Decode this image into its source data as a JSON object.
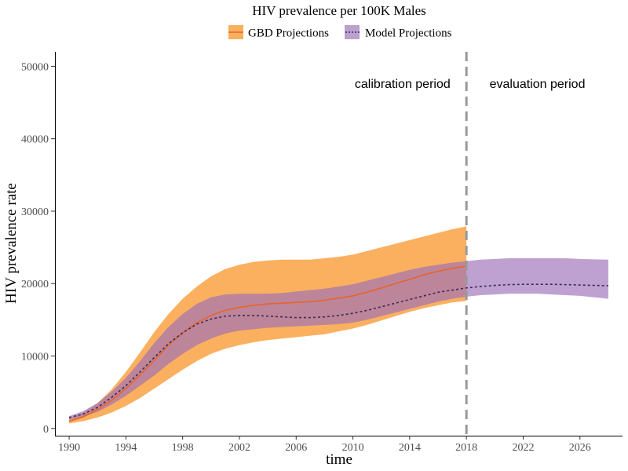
{
  "chart_data": {
    "type": "area",
    "title": "HIV prevalence per 100K Males",
    "xlabel": "time",
    "ylabel": "HIV prevalence rate",
    "xlim": [
      1989,
      2029
    ],
    "ylim": [
      -1000,
      52000
    ],
    "x_ticks": [
      1990,
      1994,
      1998,
      2002,
      2006,
      2010,
      2014,
      2018,
      2022,
      2026
    ],
    "y_ticks": [
      0,
      10000,
      20000,
      30000,
      40000,
      50000
    ],
    "grid": false,
    "legend_position": "top",
    "legend": [
      {
        "label": "GBD Projections",
        "color": "#f98e1d",
        "line_color": "#e8632b",
        "line_style": "solid"
      },
      {
        "label": "Model Projections",
        "color": "#9b6fb8",
        "line_color": "#3b2a5a",
        "line_style": "dotted"
      }
    ],
    "cutoff": {
      "x": 2018,
      "color": "#999999",
      "style": "dashed"
    },
    "annotations": [
      {
        "text": "calibration period",
        "x": 2013.5,
        "y": 47000
      },
      {
        "text": "evaluation period",
        "x": 2023,
        "y": 47000
      }
    ],
    "series": [
      {
        "name": "GBD Projections",
        "x": [
          1990,
          1991,
          1992,
          1993,
          1994,
          1995,
          1996,
          1997,
          1998,
          1999,
          2000,
          2001,
          2002,
          2003,
          2004,
          2005,
          2006,
          2007,
          2008,
          2009,
          2010,
          2011,
          2012,
          2013,
          2014,
          2015,
          2016,
          2017,
          2018
        ],
        "mean": [
          1000,
          1600,
          2600,
          3900,
          5500,
          7400,
          9400,
          11500,
          13200,
          14600,
          15600,
          16300,
          16700,
          17000,
          17200,
          17300,
          17400,
          17500,
          17700,
          18000,
          18300,
          18800,
          19400,
          20000,
          20600,
          21200,
          21700,
          22100,
          22400
        ],
        "lower": [
          700,
          1000,
          1500,
          2200,
          3100,
          4200,
          5500,
          6800,
          8100,
          9300,
          10300,
          11000,
          11500,
          11900,
          12200,
          12400,
          12600,
          12800,
          13000,
          13400,
          13800,
          14300,
          14900,
          15500,
          16100,
          16600,
          17000,
          17400,
          17600
        ],
        "upper": [
          1400,
          2200,
          3500,
          5400,
          7800,
          10500,
          13300,
          15800,
          17900,
          19600,
          21000,
          22000,
          22600,
          23000,
          23200,
          23300,
          23300,
          23300,
          23500,
          23700,
          24000,
          24500,
          25000,
          25500,
          26000,
          26500,
          27000,
          27500,
          27900
        ]
      },
      {
        "name": "Model Projections",
        "x": [
          1990,
          1991,
          1992,
          1993,
          1994,
          1995,
          1996,
          1997,
          1998,
          1999,
          2000,
          2001,
          2002,
          2003,
          2004,
          2005,
          2006,
          2007,
          2008,
          2009,
          2010,
          2011,
          2012,
          2013,
          2014,
          2015,
          2016,
          2017,
          2018,
          2019,
          2020,
          2021,
          2022,
          2023,
          2024,
          2025,
          2026,
          2027,
          2028
        ],
        "mean": [
          1500,
          2000,
          2900,
          4300,
          5900,
          7800,
          9800,
          11700,
          13200,
          14400,
          15100,
          15500,
          15600,
          15600,
          15500,
          15400,
          15300,
          15300,
          15400,
          15600,
          15900,
          16300,
          16800,
          17300,
          17800,
          18300,
          18800,
          19100,
          19400,
          19600,
          19750,
          19850,
          19900,
          19900,
          19900,
          19850,
          19800,
          19750,
          19700
        ],
        "lower": [
          1200,
          1600,
          2300,
          3300,
          4500,
          5900,
          7300,
          8900,
          10300,
          11500,
          12400,
          13100,
          13500,
          13700,
          13900,
          14000,
          14100,
          14200,
          14300,
          14400,
          14600,
          15000,
          15500,
          16000,
          16500,
          17000,
          17500,
          17900,
          18200,
          18400,
          18500,
          18600,
          18600,
          18600,
          18500,
          18400,
          18300,
          18100,
          17900
        ],
        "upper": [
          1700,
          2400,
          3500,
          5100,
          7000,
          9300,
          11800,
          14000,
          15800,
          17200,
          18100,
          18500,
          18600,
          18600,
          18600,
          18700,
          18900,
          19100,
          19300,
          19600,
          19900,
          20400,
          20900,
          21400,
          21900,
          22300,
          22600,
          22900,
          23100,
          23300,
          23400,
          23500,
          23500,
          23500,
          23500,
          23500,
          23400,
          23350,
          23300
        ]
      }
    ]
  }
}
